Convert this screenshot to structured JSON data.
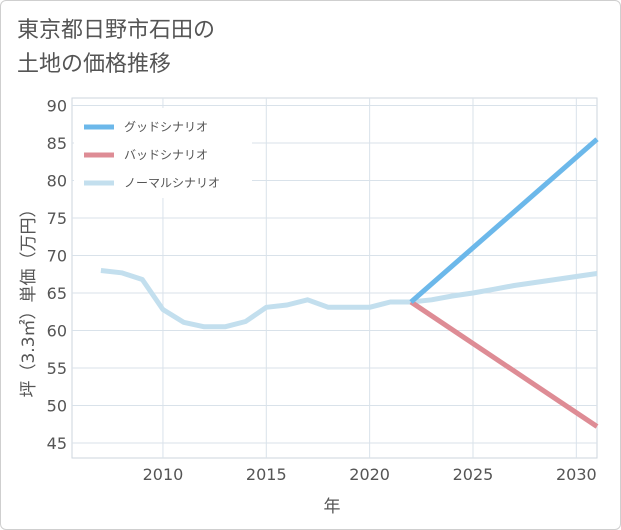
{
  "title_lines": [
    "東京都日野市石田の",
    "土地の価格推移"
  ],
  "chart_data": {
    "type": "line",
    "title": "東京都日野市石田の土地の価格推移",
    "xlabel": "年",
    "ylabel": "坪（3.3㎡）単価（万円）",
    "xlim": [
      2005.6,
      2031
    ],
    "ylim": [
      43,
      91
    ],
    "x_ticks": [
      2010,
      2015,
      2020,
      2025,
      2030
    ],
    "y_ticks": [
      45,
      50,
      55,
      60,
      65,
      70,
      75,
      80,
      85,
      90
    ],
    "grid": true,
    "legend_position": "top-left",
    "series": [
      {
        "name": "グッドシナリオ",
        "color": "#6cb8ea",
        "x": [
          2022,
          2031
        ],
        "y": [
          63.8,
          85.5
        ]
      },
      {
        "name": "バッドシナリオ",
        "color": "#de8c95",
        "x": [
          2022,
          2031
        ],
        "y": [
          63.8,
          47.2
        ]
      },
      {
        "name": "ノーマルシナリオ",
        "color": "#c3dfee",
        "x": [
          2007,
          2008,
          2009,
          2010,
          2011,
          2012,
          2013,
          2014,
          2015,
          2016,
          2017,
          2018,
          2019,
          2020,
          2021,
          2022,
          2023,
          2024,
          2025,
          2026,
          2027,
          2028,
          2029,
          2030,
          2031
        ],
        "y": [
          68.0,
          67.7,
          66.8,
          62.8,
          61.1,
          60.5,
          60.5,
          61.2,
          63.1,
          63.4,
          64.1,
          63.1,
          63.1,
          63.1,
          63.8,
          63.8,
          64.1,
          64.6,
          65.0,
          65.5,
          66.0,
          66.4,
          66.8,
          67.2,
          67.6
        ]
      }
    ]
  }
}
